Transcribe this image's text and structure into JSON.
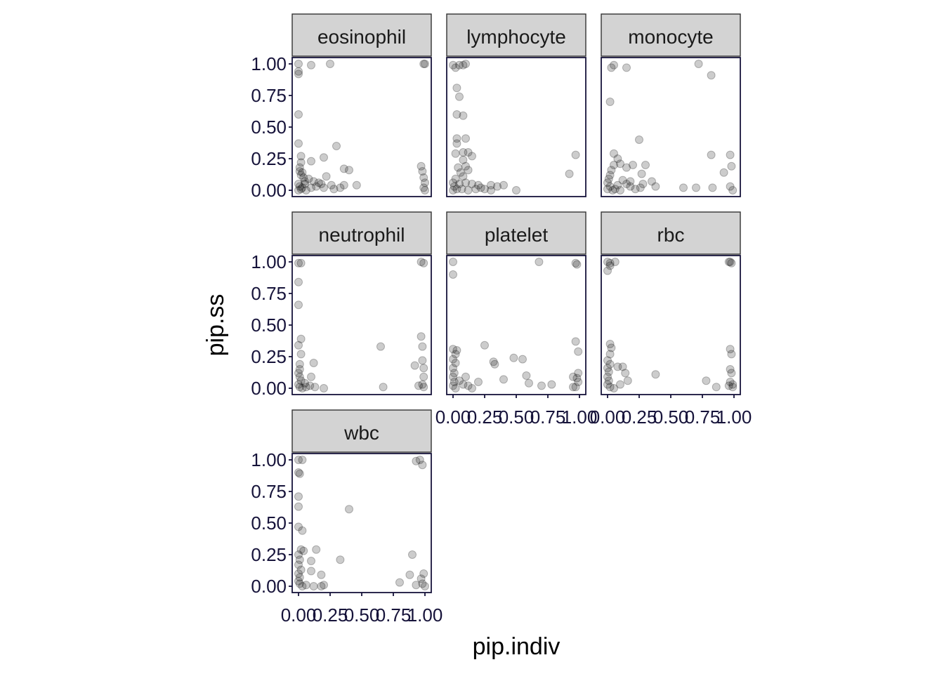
{
  "chart_data": {
    "type": "scatter",
    "xlabel": "pip.indiv",
    "ylabel": "pip.ss",
    "xlim": [
      0,
      1
    ],
    "ylim": [
      0,
      1
    ],
    "y_ticks": [
      "0.00",
      "0.25",
      "0.50",
      "0.75",
      "1.00"
    ],
    "x_ticks": [
      "0.00",
      "0.25",
      "0.50",
      "0.75",
      "1.00"
    ],
    "panels": [
      {
        "name": "eosinophil",
        "points": [
          [
            0,
            1.0
          ],
          [
            0.0,
            0.94
          ],
          [
            0.0,
            0.92
          ],
          [
            0.1,
            0.99
          ],
          [
            0.25,
            1.0
          ],
          [
            1.0,
            1.0
          ],
          [
            0.99,
            1.0
          ],
          [
            0.0,
            0.6
          ],
          [
            0.0,
            0.37
          ],
          [
            0.02,
            0.27
          ],
          [
            0.02,
            0.22
          ],
          [
            0.1,
            0.23
          ],
          [
            0.2,
            0.26
          ],
          [
            0.3,
            0.35
          ],
          [
            0.01,
            0.15
          ],
          [
            0.02,
            0.12
          ],
          [
            0.04,
            0.1
          ],
          [
            0.08,
            0.09
          ],
          [
            0.05,
            0.07
          ],
          [
            0.0,
            0.05
          ],
          [
            0.01,
            0.03
          ],
          [
            0.03,
            0.02
          ],
          [
            0.02,
            0.01
          ],
          [
            0.0,
            0.0
          ],
          [
            0.06,
            0.0
          ],
          [
            0.1,
            0.02
          ],
          [
            0.14,
            0.03
          ],
          [
            0.18,
            0.05
          ],
          [
            0.22,
            0.11
          ],
          [
            0.26,
            0.04
          ],
          [
            0.28,
            0.01
          ],
          [
            0.36,
            0.17
          ],
          [
            0.4,
            0.16
          ],
          [
            0.36,
            0.04
          ],
          [
            0.33,
            0.02
          ],
          [
            0.46,
            0.04
          ],
          [
            0.97,
            0.19
          ],
          [
            0.98,
            0.15
          ],
          [
            0.99,
            0.1
          ],
          [
            1.0,
            0.06
          ],
          [
            0.99,
            0.02
          ],
          [
            1.0,
            0.0
          ],
          [
            0.01,
            0.18
          ],
          [
            0.03,
            0.14
          ],
          [
            0.05,
            0.05
          ],
          [
            0.12,
            0.07
          ],
          [
            0.16,
            0.06
          ],
          [
            0.2,
            0.02
          ]
        ]
      },
      {
        "name": "lymphocyte",
        "points": [
          [
            0.0,
            0.99
          ],
          [
            0.02,
            0.97
          ],
          [
            0.05,
            0.99
          ],
          [
            0.1,
            1.0
          ],
          [
            0.08,
            0.99
          ],
          [
            0.03,
            0.81
          ],
          [
            0.05,
            0.74
          ],
          [
            0.03,
            0.6
          ],
          [
            0.08,
            0.59
          ],
          [
            0.03,
            0.41
          ],
          [
            0.1,
            0.41
          ],
          [
            0.03,
            0.37
          ],
          [
            0.02,
            0.29
          ],
          [
            0.08,
            0.3
          ],
          [
            0.12,
            0.3
          ],
          [
            0.15,
            0.27
          ],
          [
            0.08,
            0.24
          ],
          [
            0.1,
            0.19
          ],
          [
            0.12,
            0.16
          ],
          [
            0.04,
            0.18
          ],
          [
            0.06,
            0.14
          ],
          [
            0.08,
            0.11
          ],
          [
            0.02,
            0.09
          ],
          [
            0.0,
            0.06
          ],
          [
            0.01,
            0.03
          ],
          [
            0.03,
            0.01
          ],
          [
            0.0,
            0.0
          ],
          [
            0.05,
            0.05
          ],
          [
            0.1,
            0.06
          ],
          [
            0.15,
            0.05
          ],
          [
            0.2,
            0.04
          ],
          [
            0.22,
            0.02
          ],
          [
            0.3,
            0.04
          ],
          [
            0.35,
            0.03
          ],
          [
            0.4,
            0.04
          ],
          [
            0.5,
            0.0
          ],
          [
            0.3,
            0.0
          ],
          [
            0.92,
            0.13
          ],
          [
            0.97,
            0.28
          ],
          [
            0.18,
            0.01
          ],
          [
            0.25,
            0.01
          ],
          [
            0.07,
            0.01
          ],
          [
            0.12,
            0.0
          ]
        ]
      },
      {
        "name": "monocyte",
        "points": [
          [
            0.03,
            0.97
          ],
          [
            0.05,
            0.99
          ],
          [
            0.15,
            0.97
          ],
          [
            0.72,
            1.0
          ],
          [
            0.82,
            0.91
          ],
          [
            0.02,
            0.7
          ],
          [
            0.05,
            0.29
          ],
          [
            0.08,
            0.25
          ],
          [
            0.25,
            0.4
          ],
          [
            0.1,
            0.21
          ],
          [
            0.15,
            0.18
          ],
          [
            0.2,
            0.2
          ],
          [
            0.3,
            0.2
          ],
          [
            0.27,
            0.13
          ],
          [
            0.05,
            0.2
          ],
          [
            0.03,
            0.16
          ],
          [
            0.02,
            0.12
          ],
          [
            0.01,
            0.09
          ],
          [
            0.0,
            0.06
          ],
          [
            0.02,
            0.03
          ],
          [
            0.0,
            0.01
          ],
          [
            0.04,
            0.0
          ],
          [
            0.08,
            0.04
          ],
          [
            0.12,
            0.08
          ],
          [
            0.15,
            0.05
          ],
          [
            0.18,
            0.03
          ],
          [
            0.22,
            0.01
          ],
          [
            0.26,
            0.02
          ],
          [
            0.28,
            0.05
          ],
          [
            0.35,
            0.07
          ],
          [
            0.38,
            0.03
          ],
          [
            0.6,
            0.02
          ],
          [
            0.7,
            0.02
          ],
          [
            0.82,
            0.28
          ],
          [
            0.83,
            0.02
          ],
          [
            0.92,
            0.14
          ],
          [
            0.97,
            0.28
          ],
          [
            0.98,
            0.19
          ],
          [
            0.97,
            0.03
          ],
          [
            0.99,
            0.0
          ],
          [
            0.18,
            0.07
          ],
          [
            0.06,
            0.01
          ],
          [
            0.1,
            0.0
          ]
        ]
      },
      {
        "name": "neutrophil",
        "points": [
          [
            0.0,
            0.99
          ],
          [
            0.02,
            0.99
          ],
          [
            0.97,
            1.0
          ],
          [
            0.99,
            0.99
          ],
          [
            0.0,
            0.84
          ],
          [
            0.0,
            0.66
          ],
          [
            0.02,
            0.39
          ],
          [
            0.0,
            0.34
          ],
          [
            0.02,
            0.27
          ],
          [
            0.12,
            0.2
          ],
          [
            0.1,
            0.09
          ],
          [
            0.01,
            0.19
          ],
          [
            0.01,
            0.15
          ],
          [
            0.0,
            0.12
          ],
          [
            0.01,
            0.09
          ],
          [
            0.02,
            0.06
          ],
          [
            0.0,
            0.03
          ],
          [
            0.01,
            0.01
          ],
          [
            0.03,
            0.0
          ],
          [
            0.05,
            0.04
          ],
          [
            0.09,
            0.02
          ],
          [
            0.13,
            0.01
          ],
          [
            0.2,
            0.0
          ],
          [
            0.65,
            0.33
          ],
          [
            0.67,
            0.01
          ],
          [
            0.92,
            0.18
          ],
          [
            0.97,
            0.41
          ],
          [
            0.98,
            0.33
          ],
          [
            0.98,
            0.22
          ],
          [
            0.99,
            0.16
          ],
          [
            0.99,
            0.09
          ],
          [
            0.98,
            0.03
          ],
          [
            0.99,
            0.01
          ],
          [
            0.95,
            0.02
          ],
          [
            0.06,
            0.01
          ]
        ]
      },
      {
        "name": "platelet",
        "points": [
          [
            0.0,
            1.0
          ],
          [
            0.68,
            1.0
          ],
          [
            0.97,
            0.99
          ],
          [
            0.98,
            0.98
          ],
          [
            0.0,
            0.9
          ],
          [
            0.0,
            0.31
          ],
          [
            0.03,
            0.3
          ],
          [
            0.02,
            0.27
          ],
          [
            0.0,
            0.23
          ],
          [
            0.02,
            0.2
          ],
          [
            0.0,
            0.16
          ],
          [
            0.01,
            0.12
          ],
          [
            0.0,
            0.09
          ],
          [
            0.01,
            0.05
          ],
          [
            0.0,
            0.02
          ],
          [
            0.02,
            0.0
          ],
          [
            0.05,
            0.06
          ],
          [
            0.08,
            0.03
          ],
          [
            0.12,
            0.02
          ],
          [
            0.15,
            0.0
          ],
          [
            0.2,
            0.05
          ],
          [
            0.25,
            0.34
          ],
          [
            0.32,
            0.21
          ],
          [
            0.33,
            0.19
          ],
          [
            0.4,
            0.07
          ],
          [
            0.48,
            0.24
          ],
          [
            0.55,
            0.23
          ],
          [
            0.58,
            0.1
          ],
          [
            0.6,
            0.04
          ],
          [
            0.7,
            0.02
          ],
          [
            0.78,
            0.03
          ],
          [
            0.95,
            0.01
          ],
          [
            0.97,
            0.37
          ],
          [
            0.99,
            0.29
          ],
          [
            0.99,
            0.12
          ],
          [
            0.98,
            0.08
          ],
          [
            0.99,
            0.05
          ],
          [
            0.97,
            0.01
          ],
          [
            0.95,
            0.09
          ],
          [
            0.1,
            0.09
          ]
        ]
      },
      {
        "name": "rbc",
        "points": [
          [
            0.0,
            1.0
          ],
          [
            0.02,
            0.99
          ],
          [
            0.06,
            1.0
          ],
          [
            0.02,
            0.97
          ],
          [
            0.0,
            0.93
          ],
          [
            0.96,
            1.0
          ],
          [
            0.97,
            1.0
          ],
          [
            0.98,
            0.99
          ],
          [
            0.02,
            0.35
          ],
          [
            0.03,
            0.32
          ],
          [
            0.02,
            0.27
          ],
          [
            0.0,
            0.22
          ],
          [
            0.02,
            0.19
          ],
          [
            0.0,
            0.16
          ],
          [
            0.01,
            0.13
          ],
          [
            0.0,
            0.09
          ],
          [
            0.01,
            0.06
          ],
          [
            0.0,
            0.03
          ],
          [
            0.02,
            0.01
          ],
          [
            0.05,
            0.0
          ],
          [
            0.08,
            0.17
          ],
          [
            0.12,
            0.17
          ],
          [
            0.14,
            0.12
          ],
          [
            0.16,
            0.06
          ],
          [
            0.1,
            0.03
          ],
          [
            0.38,
            0.11
          ],
          [
            0.78,
            0.06
          ],
          [
            0.86,
            0.01
          ],
          [
            0.97,
            0.31
          ],
          [
            0.98,
            0.27
          ],
          [
            0.97,
            0.15
          ],
          [
            0.98,
            0.12
          ],
          [
            0.97,
            0.05
          ],
          [
            0.99,
            0.03
          ],
          [
            0.99,
            0.01
          ],
          [
            0.96,
            0.02
          ]
        ]
      },
      {
        "name": "wbc",
        "points": [
          [
            0.0,
            1.0
          ],
          [
            0.03,
            1.0
          ],
          [
            0.93,
            0.99
          ],
          [
            0.96,
            1.0
          ],
          [
            0.98,
            0.96
          ],
          [
            0.0,
            0.9
          ],
          [
            0.01,
            0.89
          ],
          [
            0.0,
            0.71
          ],
          [
            0.0,
            0.63
          ],
          [
            0.0,
            0.47
          ],
          [
            0.03,
            0.44
          ],
          [
            0.02,
            0.29
          ],
          [
            0.04,
            0.28
          ],
          [
            0.14,
            0.29
          ],
          [
            0.1,
            0.2
          ],
          [
            0.33,
            0.21
          ],
          [
            0.4,
            0.61
          ],
          [
            0.0,
            0.25
          ],
          [
            0.01,
            0.21
          ],
          [
            0.0,
            0.17
          ],
          [
            0.02,
            0.13
          ],
          [
            0.0,
            0.1
          ],
          [
            0.01,
            0.07
          ],
          [
            0.0,
            0.04
          ],
          [
            0.01,
            0.02
          ],
          [
            0.03,
            0.0
          ],
          [
            0.06,
            0.01
          ],
          [
            0.1,
            0.12
          ],
          [
            0.12,
            0.0
          ],
          [
            0.18,
            0.09
          ],
          [
            0.18,
            0.0
          ],
          [
            0.2,
            0.01
          ],
          [
            0.8,
            0.03
          ],
          [
            0.88,
            0.09
          ],
          [
            0.9,
            0.25
          ],
          [
            0.93,
            0.01
          ],
          [
            0.97,
            0.06
          ],
          [
            0.98,
            0.02
          ],
          [
            0.99,
            0.1
          ],
          [
            1.0,
            0.0
          ]
        ]
      }
    ]
  }
}
